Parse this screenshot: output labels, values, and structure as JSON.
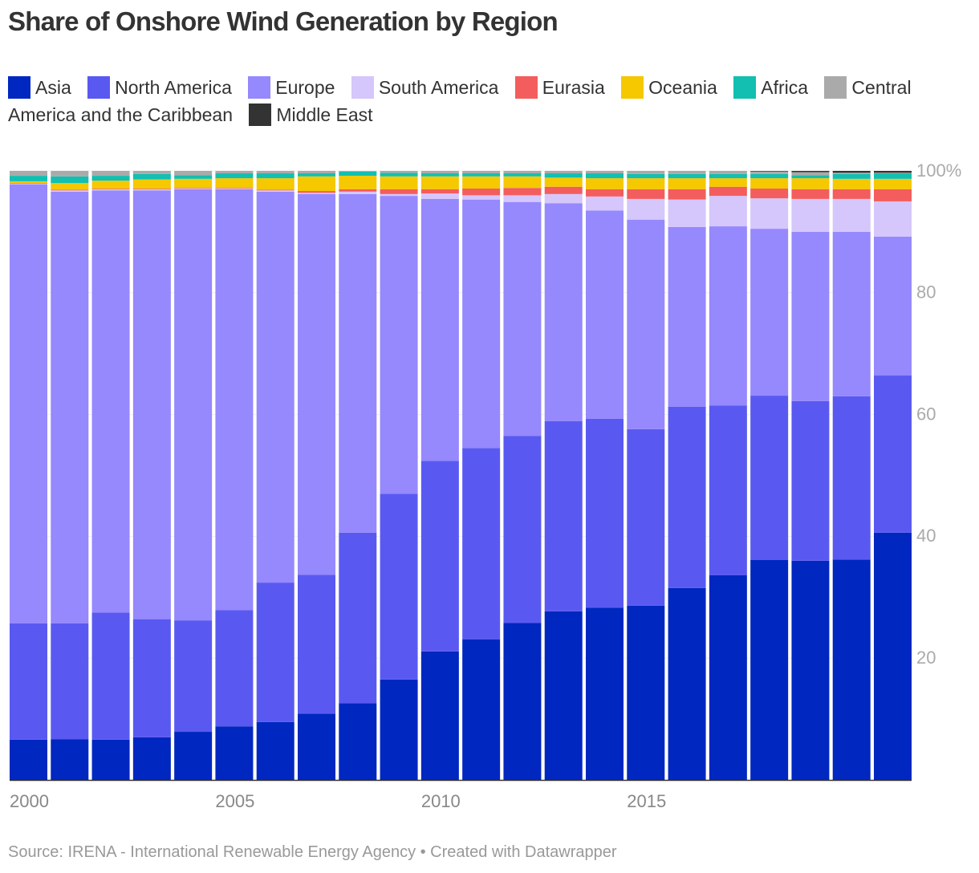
{
  "chart_data": {
    "type": "stacked-bar",
    "title": "Share of Onshore Wind Generation by Region",
    "source": "Source: IRENA - International Renewable Energy Agency • Created with Datawrapper",
    "categories": [
      "2000",
      null,
      null,
      null,
      null,
      "2005",
      null,
      null,
      null,
      null,
      "2010",
      null,
      null,
      null,
      null,
      "2015",
      null,
      null,
      null,
      null,
      null,
      null
    ],
    "series": [
      {
        "name": "Asia",
        "color": "#0027c0",
        "values": [
          6.6,
          6.7,
          6.6,
          7.0,
          7.9,
          8.8,
          9.5,
          10.9,
          12.6,
          16.5,
          21.1,
          23.1,
          25.8,
          27.7,
          28.3,
          28.6,
          31.5,
          33.6,
          36.1,
          36.0,
          36.2,
          40.6
        ]
      },
      {
        "name": "North America",
        "color": "#5959f2",
        "values": [
          19.1,
          19.0,
          20.9,
          19.4,
          18.3,
          19.1,
          22.9,
          22.8,
          28.0,
          30.5,
          31.3,
          31.4,
          30.7,
          31.2,
          31.0,
          29.0,
          29.8,
          27.9,
          27.0,
          26.2,
          26.8,
          25.8
        ]
      },
      {
        "name": "Europe",
        "color": "#9688fd",
        "values": [
          72.1,
          70.9,
          69.3,
          70.4,
          70.8,
          69.1,
          64.2,
          62.5,
          55.6,
          48.9,
          43.0,
          40.8,
          38.4,
          35.8,
          34.2,
          34.4,
          29.5,
          29.4,
          27.4,
          27.8,
          27.0,
          22.8
        ]
      },
      {
        "name": "South America",
        "color": "#d5c6fb",
        "values": [
          0.1,
          0.2,
          0.2,
          0.2,
          0.1,
          0.1,
          0.2,
          0.2,
          0.4,
          0.3,
          0.9,
          0.7,
          1.1,
          1.5,
          2.3,
          3.4,
          4.5,
          5.0,
          5.0,
          5.4,
          5.4,
          5.8
        ]
      },
      {
        "name": "Eurasia",
        "color": "#f35d5d",
        "values": [
          0.1,
          0.1,
          0.1,
          0.1,
          0.1,
          0.1,
          0.1,
          0.3,
          0.4,
          0.8,
          0.7,
          1.1,
          1.2,
          1.2,
          1.2,
          1.6,
          1.7,
          1.5,
          1.6,
          1.6,
          1.6,
          2.0
        ]
      },
      {
        "name": "Oceania",
        "color": "#f5c800",
        "values": [
          0.3,
          1.1,
          1.3,
          1.5,
          1.5,
          1.6,
          1.9,
          2.4,
          2.2,
          2.1,
          2.1,
          2.0,
          1.9,
          1.5,
          1.8,
          1.8,
          1.8,
          1.4,
          1.7,
          1.8,
          1.7,
          1.7
        ]
      },
      {
        "name": "Africa",
        "color": "#12bfb0",
        "values": [
          0.9,
          1.1,
          0.8,
          0.9,
          0.6,
          0.8,
          0.8,
          0.5,
          0.7,
          0.6,
          0.5,
          0.5,
          0.5,
          0.7,
          0.8,
          0.7,
          0.7,
          0.7,
          0.7,
          0.5,
          0.8,
          0.9
        ]
      },
      {
        "name": "Central America and the Caribbean",
        "color": "#aaaaaa",
        "values": [
          0.8,
          0.9,
          0.8,
          0.5,
          0.7,
          0.4,
          0.4,
          0.4,
          0.1,
          0.3,
          0.4,
          0.4,
          0.4,
          0.4,
          0.4,
          0.5,
          0.5,
          0.5,
          0.4,
          0.5,
          0.2,
          0.1
        ]
      },
      {
        "name": "Middle East",
        "color": "#333333",
        "values": [
          0,
          0,
          0,
          0,
          0,
          0,
          0,
          0,
          0,
          0,
          0,
          0,
          0,
          0,
          0,
          0,
          0,
          0,
          0.1,
          0.2,
          0.3,
          0.3
        ]
      }
    ],
    "ylim": [
      0,
      100
    ],
    "yticks": [
      20,
      40,
      60,
      80,
      {
        "value": 100,
        "label": "100%"
      }
    ],
    "grid": true
  }
}
